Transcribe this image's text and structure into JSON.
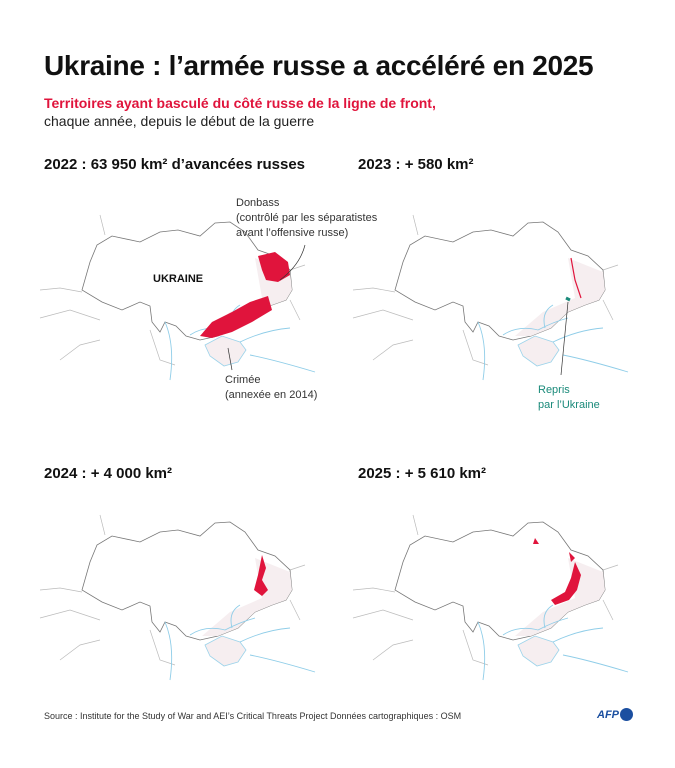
{
  "title": "Ukraine : l’armée russe a accéléré en 2025",
  "subtitle_red": "Territoires ayant basculé du côté russe de la ligne de front,",
  "subtitle": "chaque année, depuis le début de la guerre",
  "panels": [
    {
      "title": "2022 : 63 950 km² d’avancées russes"
    },
    {
      "title": "2023 : + 580 km²"
    },
    {
      "title": "2024 : + 4 000 km²"
    },
    {
      "title": "2025 : + 5 610 km²"
    }
  ],
  "labels": {
    "ukraine": "UKRAINE",
    "donbass": "Donbass",
    "donbass_note1": "(contrôlé par les séparatistes",
    "donbass_note2": "avant l’offensive russe)",
    "crimea": "Crimée",
    "crimea_note": "(annexée en 2014)",
    "retaken1": "Repris",
    "retaken2": "par l’Ukraine"
  },
  "footer": {
    "source": "Source : Institute for the Study of War and AEI’s Critical Threats Project",
    "map_data": "Données cartographiques : OSM",
    "logo": "AFP"
  },
  "colors": {
    "russian_gain": "#e0143c",
    "retaken": "#1a8a7a",
    "water": "#8fcde8",
    "occupied": "#f6eef0"
  }
}
